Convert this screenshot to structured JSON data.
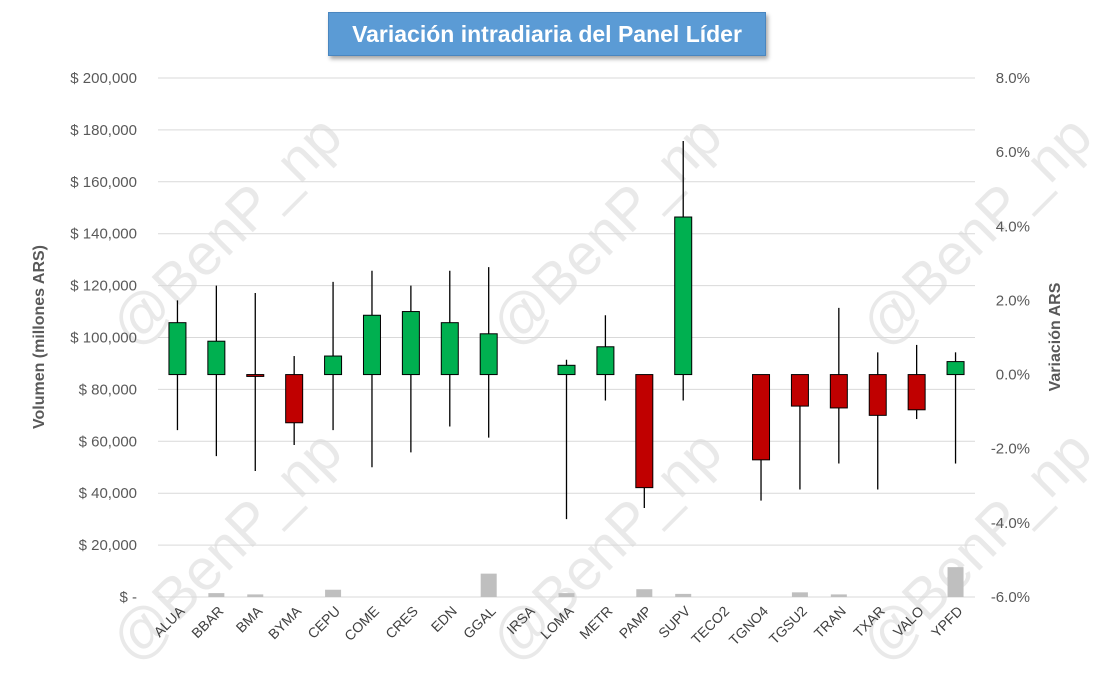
{
  "chart_data": {
    "type": "candlestick",
    "title": "Variación intradiaria del Panel Líder",
    "ylabel_left": "Volumen (millones ARS)",
    "ylabel_right": "Variación ARS",
    "watermark": "@BenP_np",
    "left_axis": {
      "ylim": [
        0,
        200000
      ],
      "tick_labels": [
        "$ -",
        "$ 20,000",
        "$ 40,000",
        "$ 60,000",
        "$ 80,000",
        "$ 100,000",
        "$ 120,000",
        "$ 140,000",
        "$ 160,000",
        "$ 180,000",
        "$ 200,000"
      ]
    },
    "right_axis": {
      "ylim": [
        -6.0,
        8.0
      ],
      "tick_labels": [
        "-6.0%",
        "-4.0%",
        "-2.0%",
        "0.0%",
        "2.0%",
        "4.0%",
        "6.0%",
        "8.0%"
      ]
    },
    "grid": true,
    "categories": [
      "ALUA",
      "BBAR",
      "BMA",
      "BYMA",
      "CEPU",
      "COME",
      "CRES",
      "EDN",
      "GGAL",
      "IRSA",
      "LOMA",
      "METR",
      "PAMP",
      "SUPV",
      "TECO2",
      "TGNO4",
      "TGSU2",
      "TRAN",
      "TXAR",
      "VALO",
      "YPFD"
    ],
    "series": [
      {
        "name": "Variación",
        "unit": "%",
        "open": [
          0,
          0,
          0,
          0,
          0,
          0,
          0,
          0,
          0,
          0,
          0,
          0,
          0,
          0,
          0,
          0,
          0,
          0,
          0,
          0,
          0
        ],
        "high": [
          2.0,
          2.4,
          2.2,
          0.5,
          2.5,
          2.8,
          2.4,
          2.8,
          2.9,
          0,
          0.4,
          1.6,
          0,
          6.3,
          0,
          0,
          0,
          1.8,
          0.6,
          0.8,
          0.6
        ],
        "low": [
          -1.5,
          -2.2,
          -2.6,
          -1.9,
          -1.5,
          -2.5,
          -2.1,
          -1.4,
          -1.7,
          0,
          -3.9,
          -0.7,
          -3.6,
          -0.7,
          0,
          -3.4,
          -3.1,
          -2.4,
          -3.1,
          -1.2,
          -2.4
        ],
        "close": [
          1.4,
          0.9,
          -0.05,
          -1.3,
          0.5,
          1.6,
          1.7,
          1.4,
          1.1,
          0,
          0.25,
          0.75,
          -3.05,
          4.25,
          0,
          -2.3,
          -0.85,
          -0.9,
          -1.1,
          -0.95,
          0.35
        ]
      },
      {
        "name": "Volumen",
        "unit": "millones ARS",
        "type": "bar",
        "values": [
          0,
          1500,
          1000,
          0,
          2800,
          0,
          0,
          0,
          9000,
          0,
          1500,
          0,
          3000,
          1200,
          0,
          0,
          1800,
          1000,
          0,
          0,
          11500
        ]
      }
    ],
    "colors": {
      "up": "#00b050",
      "down": "#c00000",
      "wick": "#000000",
      "volume": "#bfbfbf",
      "grid": "#d9d9d9",
      "title_bg": "#5b9bd5"
    }
  }
}
